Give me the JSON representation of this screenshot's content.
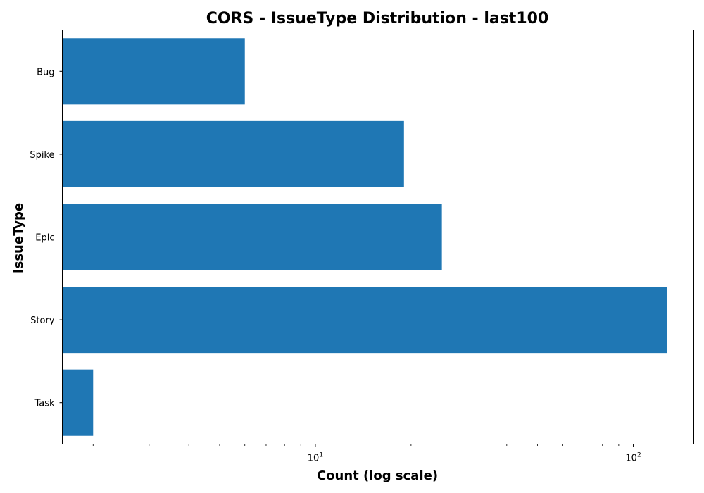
{
  "chart_data": {
    "type": "bar",
    "orientation": "horizontal",
    "title": "CORS - IssueType Distribution - last100",
    "xlabel": "Count (log scale)",
    "ylabel": "IssueType",
    "x_scale": "log",
    "xlim": [
      1.6,
      155
    ],
    "x_ticks": [
      {
        "value": 10,
        "base": "10",
        "exp": "1"
      },
      {
        "value": 100,
        "base": "10",
        "exp": "2"
      }
    ],
    "categories": [
      "Bug",
      "Spike",
      "Epic",
      "Story",
      "Task"
    ],
    "values": [
      6,
      19,
      25,
      128,
      2
    ],
    "bar_color": "#1f77b4",
    "grid": false,
    "legend": "none"
  }
}
